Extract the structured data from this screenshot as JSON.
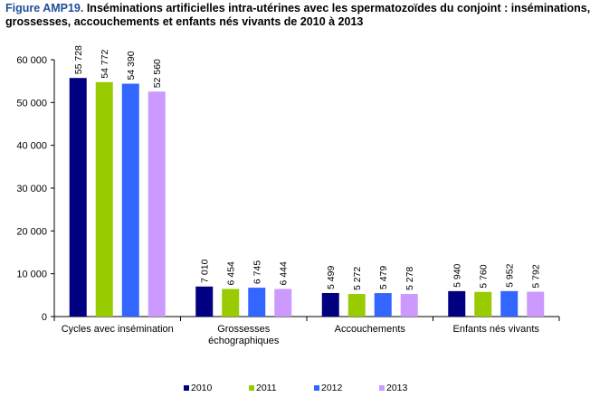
{
  "title": {
    "prefix": "Figure AMP19.",
    "text": " Inséminations artificielles intra-utérines avec les spermatozoïdes du conjoint : inséminations, grossesses, accouchements et enfants nés vivants de 2010 à 2013"
  },
  "chart_data": {
    "type": "bar",
    "title": "Figure AMP19. Inséminations artificielles intra-utérines avec les spermatozoïdes du conjoint : inséminations, grossesses, accouchements et enfants nés vivants de 2010 à 2013",
    "categories": [
      [
        "Cycles avec insémination"
      ],
      [
        "Grossesses",
        "échographiques"
      ],
      [
        "Accouchements"
      ],
      [
        "Enfants nés vivants"
      ]
    ],
    "series": [
      {
        "name": "2010",
        "color": "#000080",
        "values": [
          55728,
          7010,
          5499,
          5940
        ],
        "labels": [
          "55 728",
          "7 010",
          "5 499",
          "5 940"
        ]
      },
      {
        "name": "2011",
        "color": "#99cc00",
        "values": [
          54772,
          6454,
          5272,
          5760
        ],
        "labels": [
          "54 772",
          "6 454",
          "5 272",
          "5 760"
        ]
      },
      {
        "name": "2012",
        "color": "#3366ff",
        "values": [
          54390,
          6745,
          5479,
          5952
        ],
        "labels": [
          "54 390",
          "6 745",
          "5 479",
          "5 952"
        ]
      },
      {
        "name": "2013",
        "color": "#cc99ff",
        "values": [
          52560,
          6444,
          5278,
          5792
        ],
        "labels": [
          "52 560",
          "6 444",
          "5 278",
          "5 792"
        ]
      }
    ],
    "yticks": [
      0,
      10000,
      20000,
      30000,
      40000,
      50000,
      60000
    ],
    "ytick_labels": [
      "0",
      "10 000",
      "20 000",
      "30 000",
      "40 000",
      "50 000",
      "60 000"
    ],
    "ylim": [
      0,
      60000
    ],
    "xlabel": "",
    "ylabel": "",
    "grid": false,
    "legend": "bottom"
  }
}
